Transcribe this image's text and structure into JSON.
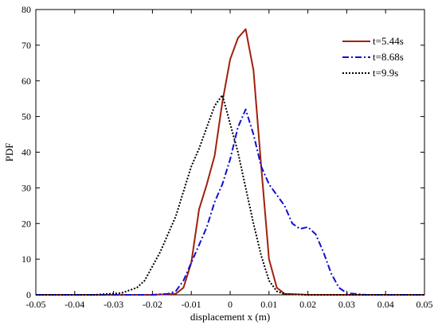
{
  "chart_data": {
    "type": "line",
    "xlabel": "displacement x (m)",
    "ylabel": "PDF",
    "xlim": [
      -0.05,
      0.05
    ],
    "ylim": [
      0,
      80
    ],
    "x_ticks": [
      -0.05,
      -0.04,
      -0.03,
      -0.02,
      -0.01,
      0,
      0.01,
      0.02,
      0.03,
      0.04,
      0.05
    ],
    "x_tick_labels": [
      "-0.05",
      "-0.04",
      "-0.03",
      "-0.02",
      "-0.01",
      "0",
      "0.01",
      "0.02",
      "0.03",
      "0.04",
      "0.05"
    ],
    "y_ticks": [
      0,
      10,
      20,
      30,
      40,
      50,
      60,
      70,
      80
    ],
    "y_tick_labels": [
      "0",
      "10",
      "20",
      "30",
      "40",
      "50",
      "60",
      "70",
      "80"
    ],
    "grid": false,
    "legend_position": "top-right",
    "series": [
      {
        "name": "t=5.44s",
        "color": "#a0200c",
        "style": "solid",
        "x": [
          -0.05,
          -0.02,
          -0.014,
          -0.012,
          -0.01,
          -0.008,
          -0.006,
          -0.004,
          -0.002,
          0,
          0.002,
          0.004,
          0.006,
          0.008,
          0.01,
          0.012,
          0.014,
          0.02,
          0.05
        ],
        "y": [
          0,
          0,
          0.3,
          2,
          9,
          24,
          31,
          39,
          54,
          66,
          72,
          74.5,
          63,
          36,
          10,
          2,
          0.3,
          0,
          0
        ]
      },
      {
        "name": "t=8.68s",
        "color": "#1010d0",
        "style": "dashdot",
        "x": [
          -0.05,
          -0.02,
          -0.016,
          -0.014,
          -0.012,
          -0.01,
          -0.008,
          -0.006,
          -0.004,
          -0.002,
          0,
          0.002,
          0.004,
          0.006,
          0.008,
          0.01,
          0.012,
          0.014,
          0.016,
          0.018,
          0.02,
          0.022,
          0.024,
          0.026,
          0.028,
          0.03,
          0.035,
          0.05
        ],
        "y": [
          0,
          0,
          0.3,
          1,
          4,
          9,
          14,
          19,
          26,
          31,
          38,
          47,
          52,
          45,
          36,
          31,
          28,
          25,
          20,
          18.5,
          19,
          17,
          12,
          6,
          2,
          0.5,
          0,
          0
        ]
      },
      {
        "name": "t=9.9s",
        "color": "#000000",
        "style": "dotted",
        "x": [
          -0.05,
          -0.035,
          -0.028,
          -0.024,
          -0.022,
          -0.02,
          -0.018,
          -0.016,
          -0.014,
          -0.012,
          -0.01,
          -0.008,
          -0.006,
          -0.004,
          -0.002,
          0,
          0.002,
          0.004,
          0.006,
          0.008,
          0.01,
          0.012,
          0.014,
          0.02,
          0.05
        ],
        "y": [
          0,
          0,
          0.5,
          2,
          4,
          8,
          12,
          17,
          22,
          29,
          36,
          41,
          47,
          53,
          56,
          48,
          40,
          30,
          20,
          11,
          4,
          1,
          0.2,
          0,
          0
        ]
      }
    ]
  }
}
